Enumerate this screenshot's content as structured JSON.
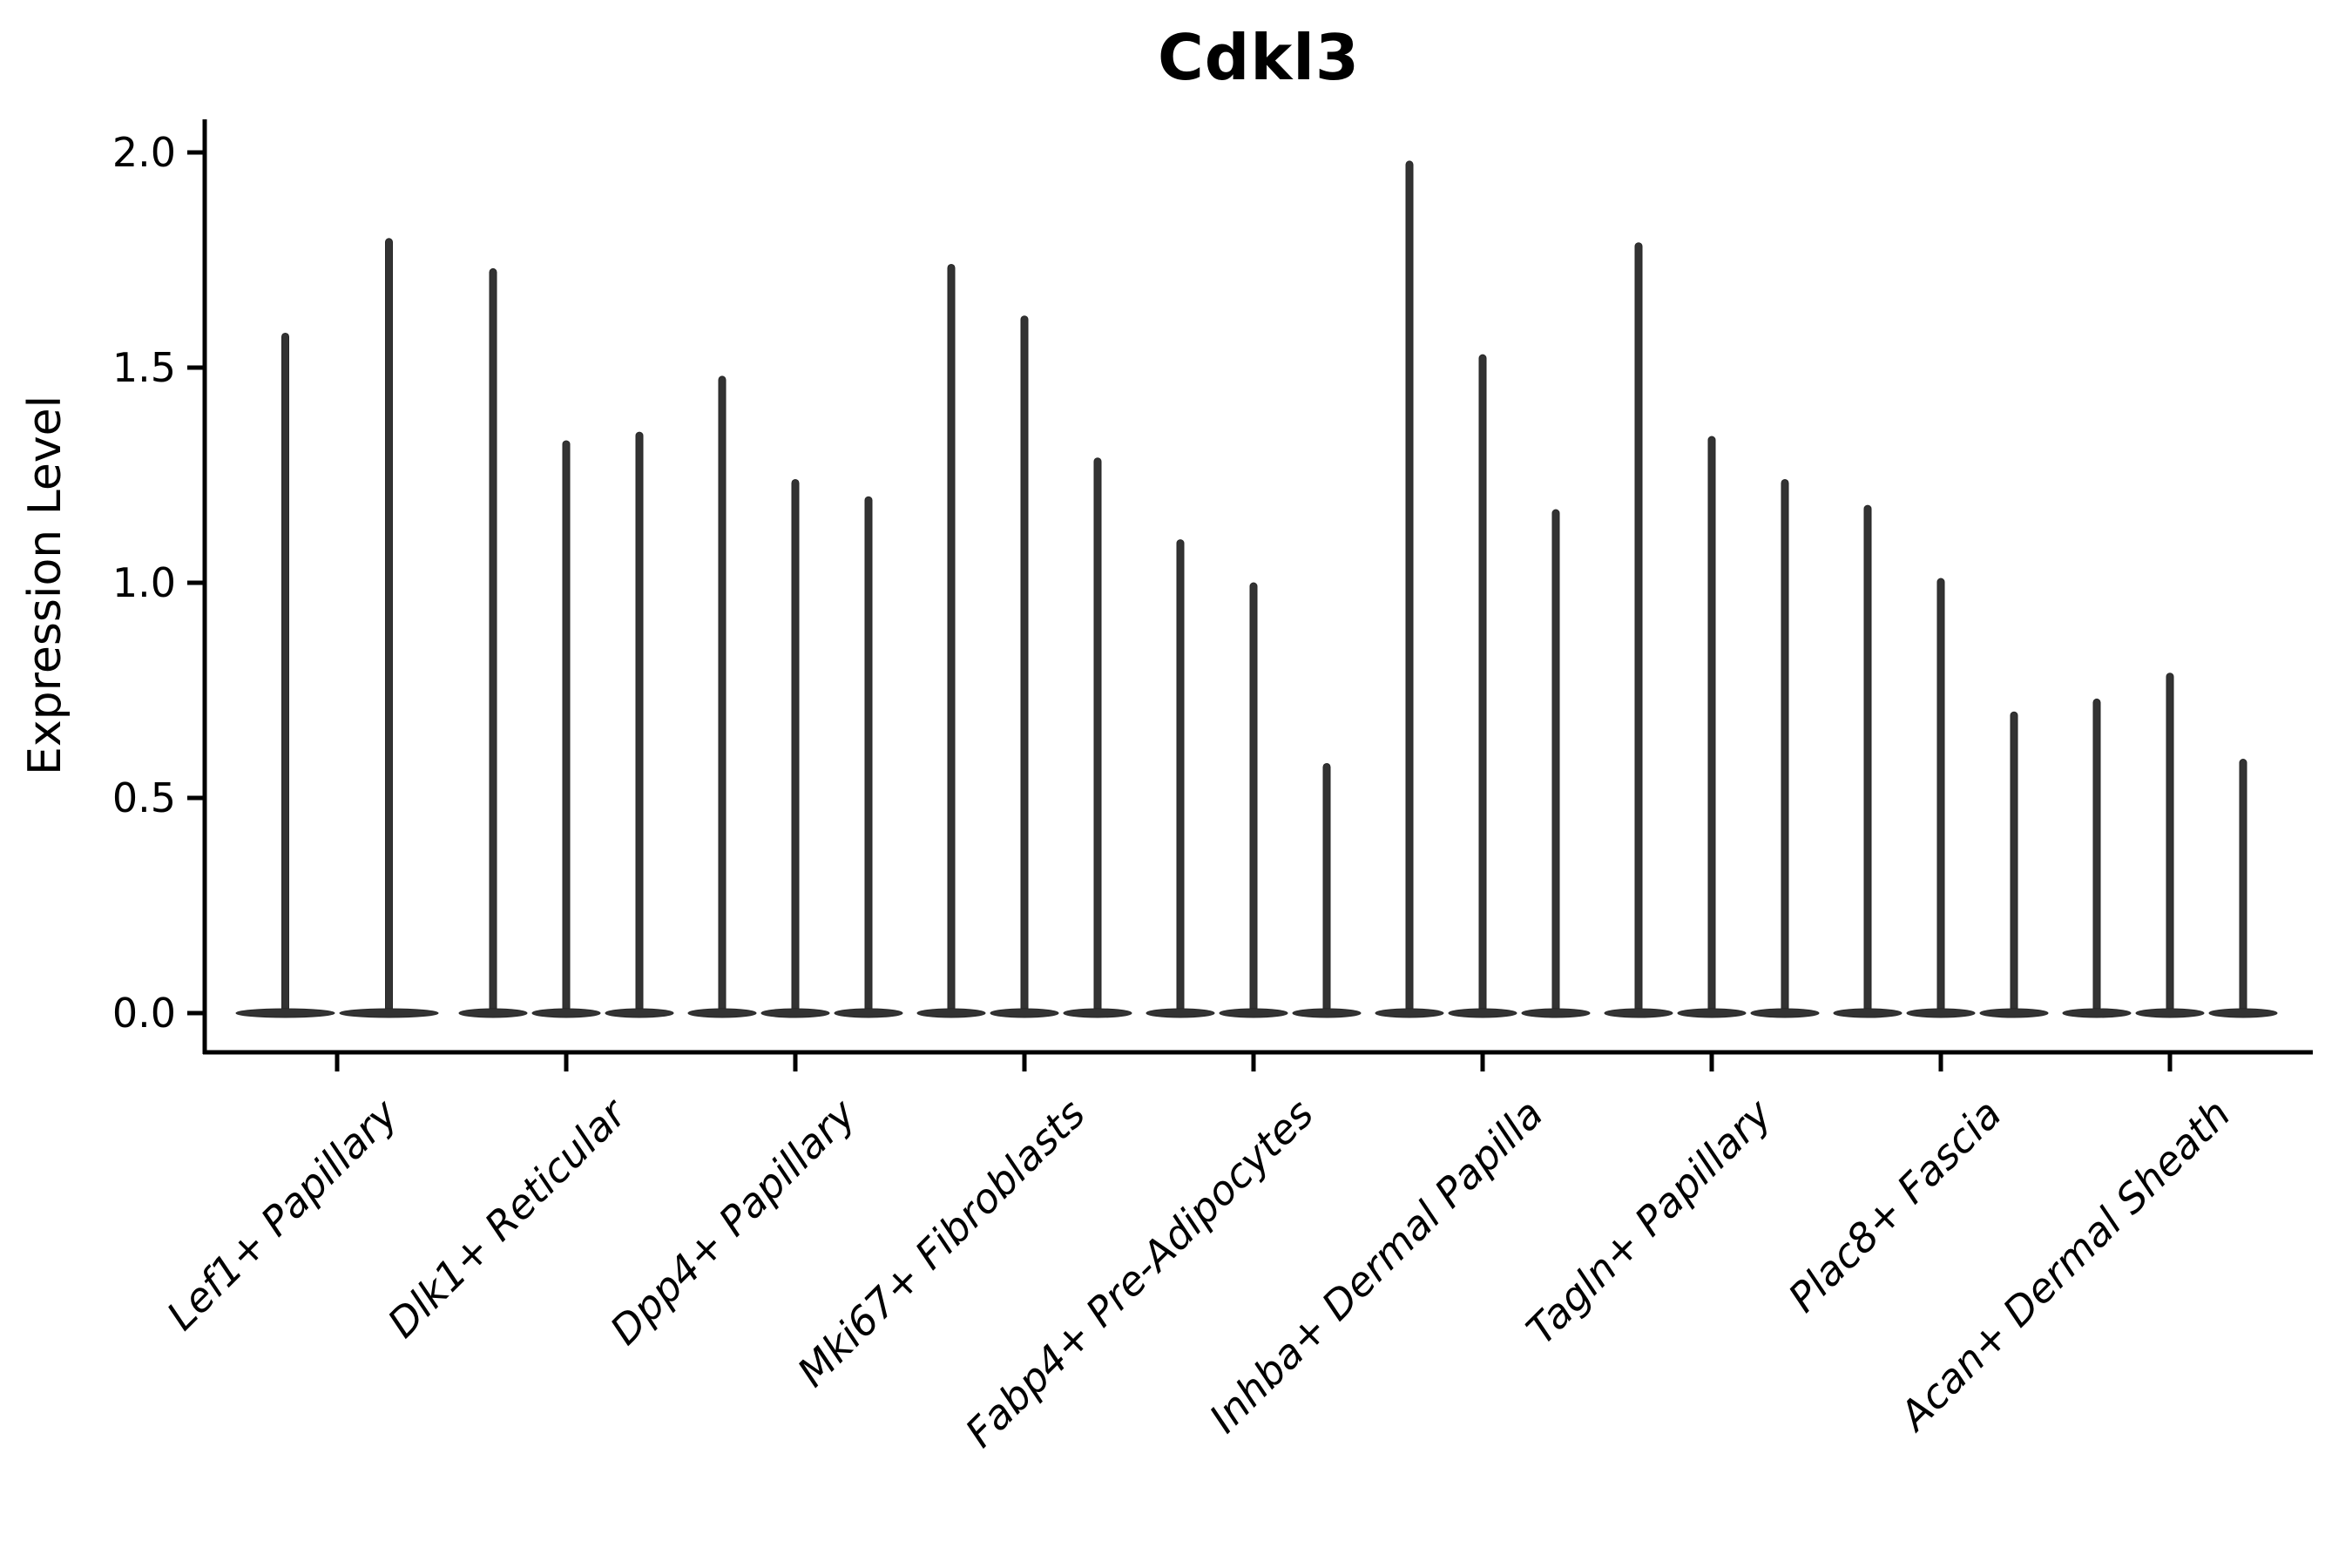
{
  "title": "Cdkl3",
  "chart_data": {
    "type": "violin",
    "title": "Cdkl3",
    "xlabel": "",
    "ylabel": "Expression Level",
    "ylim": [
      0,
      2.08
    ],
    "yticks": [
      0.0,
      0.5,
      1.0,
      1.5,
      2.0
    ],
    "ytick_labels": [
      "0.0",
      "0.5",
      "1.0",
      "1.5",
      "2.0"
    ],
    "grid": false,
    "legend": null,
    "violin_color": "#333333",
    "violin_edge_color": "#262626",
    "axis_color": "#000000",
    "description": "Violin plot of Cdkl3 expression; each category shows narrow spike-shaped violins (density concentrated at 0 with a thin tail up to the listed maximum expression value).",
    "categories": [
      "Lef1+ Papillary",
      "Dlk1+ Reticular",
      "Dpp4+ Papillary",
      "Mki67+ Fibroblasts",
      "Fabp4+ Pre-Adipocytes",
      "Inhba+ Dermal Papilla",
      "Tagln+ Papillary",
      "Plac8+ Fascia",
      "Acan+ Dermal Sheath"
    ],
    "groups": [
      {
        "category": "Lef1+ Papillary",
        "violin_maxima": [
          1.58,
          1.8
        ]
      },
      {
        "category": "Dlk1+ Reticular",
        "violin_maxima": [
          1.73,
          1.33,
          1.35
        ]
      },
      {
        "category": "Dpp4+ Papillary",
        "violin_maxima": [
          1.48,
          1.24,
          1.2
        ]
      },
      {
        "category": "Mki67+ Fibroblasts",
        "violin_maxima": [
          1.74,
          1.62,
          1.29
        ]
      },
      {
        "category": "Fabp4+ Pre-Adipocytes",
        "violin_maxima": [
          1.1,
          1.0,
          0.58
        ]
      },
      {
        "category": "Inhba+ Dermal Papilla",
        "violin_maxima": [
          1.98,
          1.53,
          1.17
        ]
      },
      {
        "category": "Tagln+ Papillary",
        "violin_maxima": [
          1.79,
          1.34,
          1.24
        ]
      },
      {
        "category": "Plac8+ Fascia",
        "violin_maxima": [
          1.18,
          1.01,
          0.7
        ]
      },
      {
        "category": "Acan+ Dermal Sheath",
        "violin_maxima": [
          0.73,
          0.79,
          0.59
        ]
      }
    ]
  }
}
